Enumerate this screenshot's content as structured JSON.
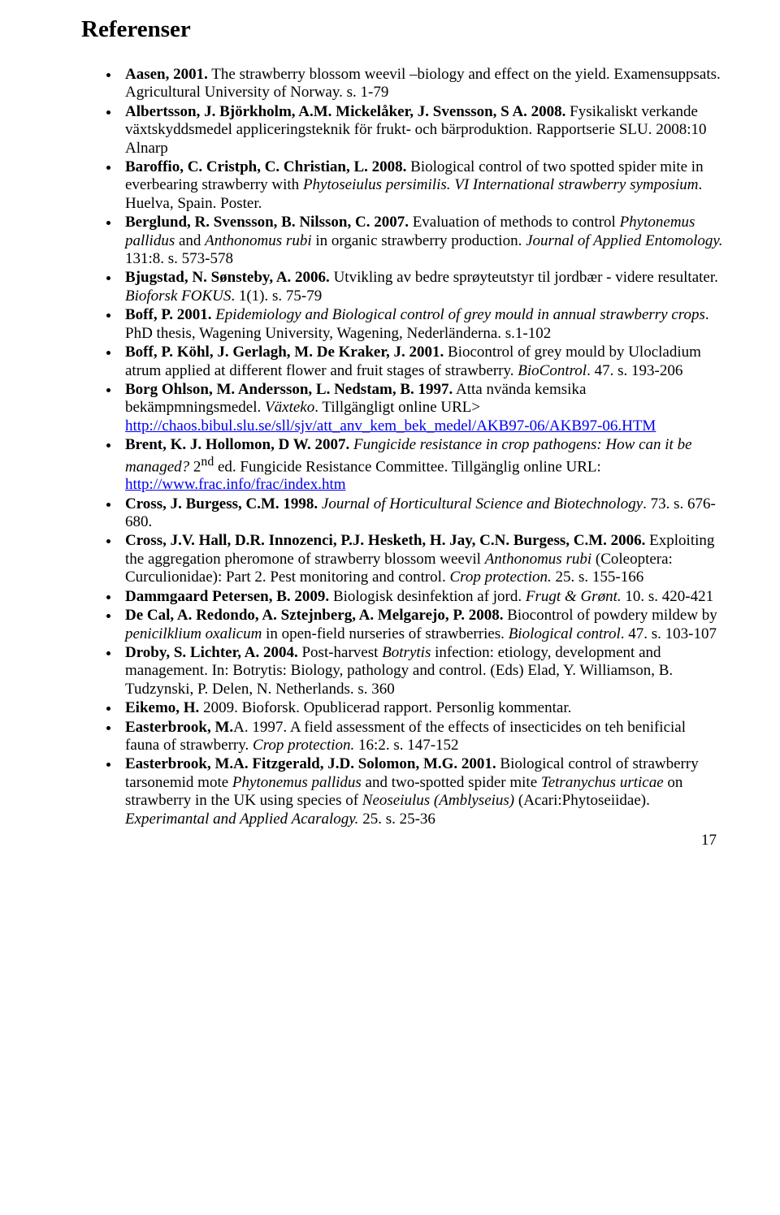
{
  "heading": "Referenser",
  "page_number": "17",
  "refs": [
    {
      "segments": [
        {
          "t": "Aasen, 2001.",
          "s": "b"
        },
        {
          "t": " The strawberry blossom weevil –biology and effect on the yield. Examensuppsats. Agricultural University of Norway. s. 1-79"
        }
      ]
    },
    {
      "segments": [
        {
          "t": "Albertsson, J. Björkholm, A.M. Mickelåker, J. Svensson, S A. 2008.",
          "s": "b"
        },
        {
          "t": " Fysikaliskt verkande växtskyddsmedel appliceringsteknik för frukt- och bärproduktion. Rapportserie SLU. 2008:10 Alnarp"
        }
      ]
    },
    {
      "segments": [
        {
          "t": "Baroffio, C. Cristph, C. Christian, L. 2008.",
          "s": "b"
        },
        {
          "t": " Biological control of two spotted spider mite in everbearing strawberry with "
        },
        {
          "t": "Phytoseiulus persimilis. VI International strawberry symposium",
          "s": "i"
        },
        {
          "t": ". Huelva, Spain. Poster."
        }
      ]
    },
    {
      "segments": [
        {
          "t": "Berglund, R. Svensson, B. Nilsson, C. 2007.",
          "s": "b"
        },
        {
          "t": " Evaluation of methods to control "
        },
        {
          "t": "Phytonemus pallidus",
          "s": "i"
        },
        {
          "t": " and "
        },
        {
          "t": "Anthonomus rubi",
          "s": "i"
        },
        {
          "t": " in organic strawberry production. "
        },
        {
          "t": "Journal of Applied Entomology.",
          "s": "i"
        },
        {
          "t": " 131:8. s. 573-578"
        }
      ]
    },
    {
      "segments": [
        {
          "t": "Bjugstad, N. Sønsteby, A. 2006.",
          "s": "b"
        },
        {
          "t": " Utvikling av bedre sprøyteutstyr til jordbær - videre resultater. "
        },
        {
          "t": "Bioforsk FOKUS",
          "s": "i"
        },
        {
          "t": ". 1(1). s. 75-79"
        }
      ]
    },
    {
      "segments": [
        {
          "t": "Boff, P. 2001.",
          "s": "b"
        },
        {
          "t": " "
        },
        {
          "t": "Epidemiology and Biological control of grey mould in annual strawberry crops",
          "s": "i"
        },
        {
          "t": ". PhD thesis, Wagening University, Wagening, Nederländerna. s.1-102"
        }
      ]
    },
    {
      "segments": [
        {
          "t": "Boff, P. Köhl, J. Gerlagh, M. De Kraker, J. 2001.",
          "s": "b"
        },
        {
          "t": " Biocontrol of grey mould by Ulocladium atrum applied at different flower and fruit stages of strawberry. "
        },
        {
          "t": "BioControl",
          "s": "i"
        },
        {
          "t": ". 47. s. 193-206"
        }
      ]
    },
    {
      "segments": [
        {
          "t": "Borg Ohlson, M. Andersson, L. Nedstam, B. 1997.",
          "s": "b"
        },
        {
          "t": " Atta nvända kemsika bekämpmningsmedel. "
        },
        {
          "t": "Växteko",
          "s": "i"
        },
        {
          "t": ". Tillgängligt online URL> "
        },
        {
          "t": "http://chaos.bibul.slu.se/sll/sjv/att_anv_kem_bek_medel/AKB97-06/AKB97-06.HTM",
          "s": "link"
        }
      ]
    },
    {
      "segments": [
        {
          "t": "Brent, K. J. Hollomon, D W. 2007.",
          "s": "b"
        },
        {
          "t": " "
        },
        {
          "t": "Fungicide resistance in crop pathogens: How can it be managed?",
          "s": "i"
        },
        {
          "t": " 2"
        },
        {
          "t": "nd",
          "s": "sup"
        },
        {
          "t": " ed. Fungicide Resistance Committee. Tillgänglig online URL: "
        },
        {
          "t": "http://www.frac.info/frac/index.htm",
          "s": "link"
        }
      ]
    },
    {
      "segments": [
        {
          "t": "Cross, J. Burgess, C.M. 1998.",
          "s": "b"
        },
        {
          "t": "  "
        },
        {
          "t": "Journal of Horticultural Science and Biotechnology",
          "s": "i"
        },
        {
          "t": ". 73. s. 676-680."
        }
      ]
    },
    {
      "segments": [
        {
          "t": "Cross, J.V. Hall, D.R. Innozenci, P.J. Hesketh, H. Jay, C.N. Burgess, C.M. 2006.",
          "s": "b"
        },
        {
          "t": " Exploiting the aggregation pheromone of strawberry blossom weevil "
        },
        {
          "t": "Anthonomus rubi",
          "s": "i"
        },
        {
          "t": " (Coleoptera: Curculionidae): Part 2. Pest monitoring and control. "
        },
        {
          "t": "Crop protection.",
          "s": "i"
        },
        {
          "t": " 25. s. 155-166"
        }
      ]
    },
    {
      "segments": [
        {
          "t": "Dammgaard Petersen, B. 2009.",
          "s": "b"
        },
        {
          "t": " Biologisk desinfektion af jord. "
        },
        {
          "t": "Frugt & Grønt.",
          "s": "i"
        },
        {
          "t": " 10. s. 420-421"
        }
      ]
    },
    {
      "segments": [
        {
          "t": "De Cal, A. Redondo, A. Sztejnberg, A. Melgarejo, P. 2008.",
          "s": "b"
        },
        {
          "t": " Biocontrol of powdery mildew by "
        },
        {
          "t": "penicilklium oxalicum",
          "s": "i"
        },
        {
          "t": "  in open-field nurseries of strawberries. "
        },
        {
          "t": "Biological control",
          "s": "i"
        },
        {
          "t": ". 47. s. 103-107"
        }
      ]
    },
    {
      "segments": [
        {
          "t": "Droby, S. Lichter, A. 2004.",
          "s": "b"
        },
        {
          "t": " Post-harvest "
        },
        {
          "t": "Botrytis",
          "s": "i"
        },
        {
          "t": " infection: etiology, development and management. In: Botrytis: Biology, pathology and control. (Eds) Elad, Y. Williamson, B. Tudzynski, P. Delen, N. Netherlands. s. 360"
        }
      ]
    },
    {
      "segments": [
        {
          "t": "Eikemo, H.",
          "s": "b"
        },
        {
          "t": " 2009. Bioforsk. Opublicerad rapport. Personlig kommentar."
        }
      ]
    },
    {
      "segments": [
        {
          "t": "Easterbrook, M.",
          "s": "b"
        },
        {
          "t": "A. 1997. A field assessment of the effects of insecticides on teh benificial fauna of strawberry. "
        },
        {
          "t": "Crop protection.",
          "s": "i"
        },
        {
          "t": " 16:2. s. 147-152"
        }
      ]
    },
    {
      "segments": [
        {
          "t": "Easterbrook, M.A. Fitzgerald, J.D. Solomon, M.G. 2001.",
          "s": "b"
        },
        {
          "t": " Biological control of strawberry tarsonemid mote "
        },
        {
          "t": "Phytonemus pallidus",
          "s": "i"
        },
        {
          "t": " and two-spotted spider mite "
        },
        {
          "t": "Tetranychus urticae",
          "s": "i"
        },
        {
          "t": " on strawberry in the UK using species of "
        },
        {
          "t": "Neoseiulus (Amblyseius)",
          "s": "i"
        },
        {
          "t": " (Acari:Phytoseiidae). "
        },
        {
          "t": "Experimantal and Applied Acaralogy. ",
          "s": "i"
        },
        {
          "t": " 25. s. 25-36"
        }
      ]
    }
  ]
}
